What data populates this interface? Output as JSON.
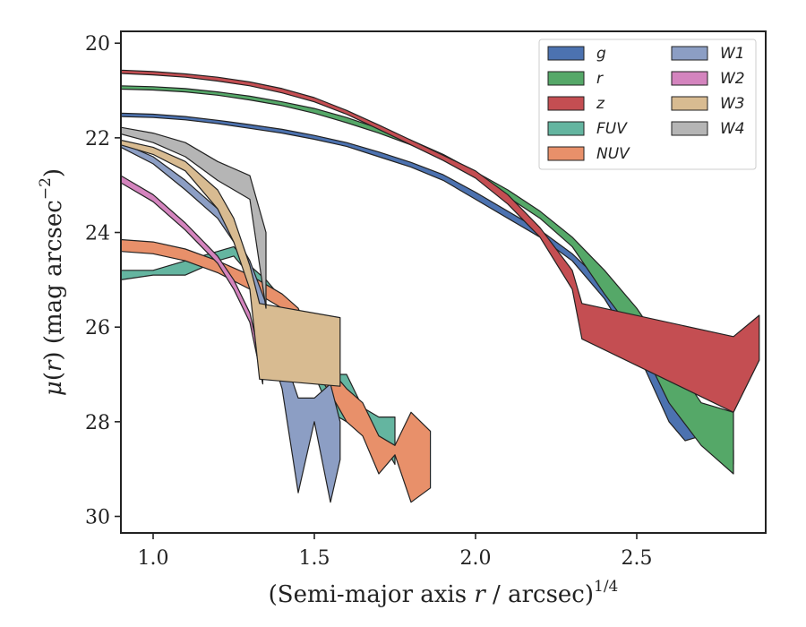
{
  "chart_data": {
    "type": "area",
    "xlabel": "(Semi-major axis r / arcsec)",
    "xlabel_parts": {
      "open": "(Semi-major axis ",
      "var": "r",
      "mid": " / arcsec)",
      "sup": "1/4"
    },
    "ylabel_parts": {
      "mu": "μ",
      "open": "(",
      "var": "r",
      "close": ")",
      "unit": " (mag arcsec",
      "sup": "−2",
      "end": ")"
    },
    "xlim": [
      0.9,
      2.9
    ],
    "ylim": [
      30.35,
      19.75
    ],
    "y_inverted": true,
    "x_ticks": [
      1.0,
      1.5,
      2.0,
      2.5
    ],
    "x_tick_labels": [
      "1.0",
      "1.5",
      "2.0",
      "2.5"
    ],
    "y_ticks": [
      20,
      22,
      24,
      26,
      28,
      30
    ],
    "y_tick_labels": [
      "20",
      "22",
      "24",
      "26",
      "28",
      "30"
    ],
    "grid": false,
    "legend": {
      "placement": "top-right",
      "columns": 2
    },
    "series": [
      {
        "name": "g",
        "color": "#4c72b0",
        "x": [
          0.9,
          1.0,
          1.1,
          1.2,
          1.3,
          1.4,
          1.5,
          1.6,
          1.7,
          1.8,
          1.9,
          2.0,
          2.1,
          2.2,
          2.3,
          2.4,
          2.5,
          2.6,
          2.65,
          2.7,
          2.75,
          2.8
        ],
        "top": [
          21.48,
          21.5,
          21.55,
          21.63,
          21.72,
          21.82,
          21.95,
          22.1,
          22.3,
          22.52,
          22.78,
          23.15,
          23.55,
          23.95,
          24.45,
          25.1,
          25.8,
          26.8,
          27.4,
          27.8,
          28.0,
          28.6
        ],
        "bottom": [
          21.55,
          21.57,
          21.62,
          21.7,
          21.8,
          21.9,
          22.03,
          22.18,
          22.4,
          22.62,
          22.9,
          23.3,
          23.7,
          24.1,
          24.6,
          25.4,
          26.5,
          28.0,
          28.4,
          28.3,
          28.2,
          28.9
        ]
      },
      {
        "name": "r",
        "color": "#55a868",
        "x": [
          0.9,
          1.0,
          1.1,
          1.2,
          1.3,
          1.4,
          1.5,
          1.6,
          1.7,
          1.8,
          1.9,
          2.0,
          2.1,
          2.2,
          2.3,
          2.4,
          2.5,
          2.6,
          2.7,
          2.8
        ],
        "top": [
          20.9,
          20.92,
          20.96,
          21.03,
          21.12,
          21.24,
          21.38,
          21.57,
          21.8,
          22.05,
          22.35,
          22.72,
          23.1,
          23.55,
          24.1,
          24.8,
          25.6,
          26.6,
          27.6,
          27.8
        ],
        "bottom": [
          20.97,
          20.99,
          21.03,
          21.1,
          21.2,
          21.32,
          21.48,
          21.68,
          21.9,
          22.15,
          22.45,
          22.82,
          23.25,
          23.7,
          24.3,
          25.3,
          26.2,
          27.6,
          28.5,
          29.1
        ]
      },
      {
        "name": "z",
        "color": "#c44e52",
        "x": [
          0.9,
          1.0,
          1.1,
          1.2,
          1.3,
          1.4,
          1.5,
          1.6,
          1.7,
          1.8,
          1.9,
          2.0,
          2.1,
          2.2,
          2.3,
          2.33,
          2.8,
          2.88
        ],
        "top": [
          20.57,
          20.6,
          20.65,
          20.72,
          20.82,
          20.96,
          21.15,
          21.42,
          21.73,
          22.05,
          22.37,
          22.7,
          23.2,
          23.9,
          24.8,
          25.5,
          26.2,
          25.75
        ],
        "bottom": [
          20.64,
          20.67,
          20.72,
          20.8,
          20.9,
          21.05,
          21.24,
          21.5,
          21.82,
          22.15,
          22.48,
          22.85,
          23.4,
          24.1,
          25.2,
          26.25,
          27.8,
          26.7
        ]
      },
      {
        "name": "FUV",
        "color": "#64b5a0",
        "x": [
          0.9,
          1.0,
          1.1,
          1.2,
          1.25,
          1.3,
          1.35,
          1.4,
          1.45,
          1.5,
          1.55,
          1.6,
          1.65,
          1.7,
          1.75
        ],
        "top": [
          24.8,
          24.8,
          24.6,
          24.4,
          24.3,
          24.7,
          25.0,
          25.4,
          25.9,
          26.4,
          27.0,
          27.0,
          27.7,
          27.9,
          27.9
        ],
        "bottom": [
          25.0,
          24.9,
          24.9,
          24.6,
          24.5,
          24.9,
          25.2,
          25.6,
          26.3,
          27.0,
          27.8,
          28.0,
          28.2,
          28.3,
          28.9
        ]
      },
      {
        "name": "NUV",
        "color": "#e8906a",
        "x": [
          0.9,
          1.0,
          1.1,
          1.2,
          1.3,
          1.4,
          1.45,
          1.5,
          1.55,
          1.6,
          1.65,
          1.7,
          1.75,
          1.8,
          1.86
        ],
        "top": [
          24.15,
          24.2,
          24.35,
          24.6,
          24.9,
          25.3,
          25.6,
          26.4,
          26.9,
          27.3,
          27.6,
          28.3,
          28.5,
          27.8,
          28.2
        ],
        "bottom": [
          24.4,
          24.45,
          24.6,
          24.85,
          25.2,
          25.6,
          26.0,
          26.9,
          27.4,
          28.0,
          28.3,
          29.1,
          28.7,
          29.7,
          29.4
        ]
      },
      {
        "name": "W1",
        "color": "#8c9ec4",
        "x": [
          0.9,
          1.0,
          1.1,
          1.2,
          1.25,
          1.3,
          1.35,
          1.4,
          1.45,
          1.5,
          1.55,
          1.58
        ],
        "top": [
          22.1,
          22.4,
          22.9,
          23.5,
          24.0,
          24.6,
          25.5,
          26.5,
          27.5,
          27.5,
          27.2,
          28.0
        ],
        "bottom": [
          22.2,
          22.55,
          23.1,
          23.7,
          24.2,
          24.9,
          26.2,
          27.3,
          29.5,
          28.0,
          29.7,
          28.8
        ]
      },
      {
        "name": "W2",
        "color": "#d484be",
        "x": [
          0.9,
          1.0,
          1.1,
          1.2,
          1.25,
          1.3,
          1.34
        ],
        "top": [
          22.8,
          23.2,
          23.8,
          24.5,
          25.0,
          25.7,
          26.9
        ],
        "bottom": [
          22.95,
          23.35,
          23.95,
          24.65,
          25.2,
          25.9,
          27.2
        ]
      },
      {
        "name": "W3",
        "color": "#d8bb91",
        "x": [
          0.9,
          1.0,
          1.1,
          1.2,
          1.25,
          1.3,
          1.33,
          1.58
        ],
        "top": [
          22.05,
          22.2,
          22.5,
          23.1,
          23.7,
          24.7,
          25.5,
          25.8
        ],
        "bottom": [
          22.15,
          22.35,
          22.7,
          23.5,
          24.2,
          25.2,
          27.1,
          27.25
        ]
      },
      {
        "name": "W4",
        "color": "#b5b5b5",
        "x": [
          0.9,
          1.0,
          1.1,
          1.2,
          1.3,
          1.35
        ],
        "top": [
          21.78,
          21.9,
          22.1,
          22.5,
          22.8,
          24.0
        ],
        "bottom": [
          21.92,
          22.1,
          22.4,
          22.9,
          23.3,
          25.6
        ]
      }
    ]
  }
}
